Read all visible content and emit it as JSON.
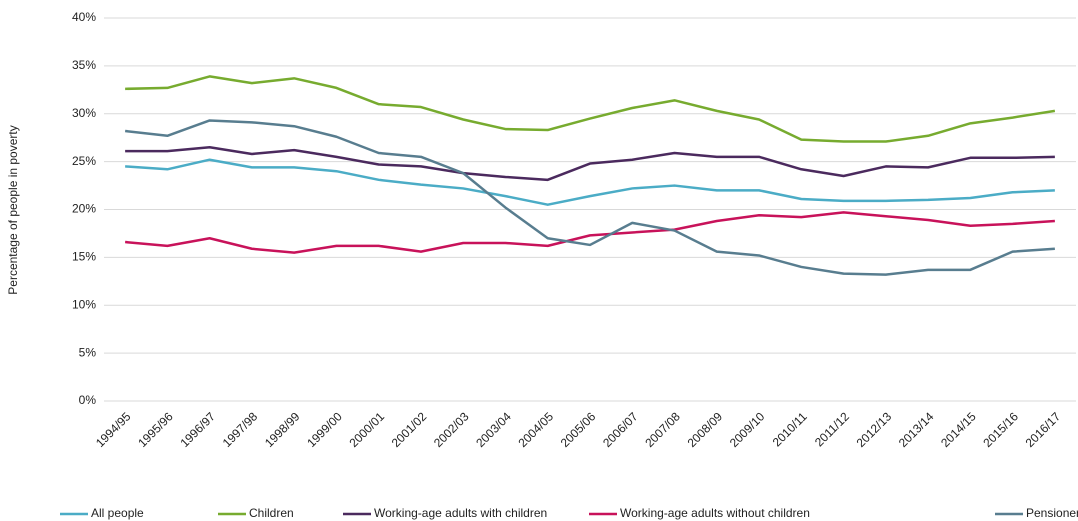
{
  "chart_data": {
    "type": "line",
    "y_label": "Percentage of people in poverty",
    "categories": [
      "1994/95",
      "1995/96",
      "1996/97",
      "1997/98",
      "1998/99",
      "1999/00",
      "2000/01",
      "2001/02",
      "2002/03",
      "2003/04",
      "2004/05",
      "2005/06",
      "2006/07",
      "2007/08",
      "2008/09",
      "2009/10",
      "2010/11",
      "2011/12",
      "2012/13",
      "2013/14",
      "2014/15",
      "2015/16",
      "2016/17"
    ],
    "series": [
      {
        "name": "All people",
        "color": "#4bacc6",
        "values": [
          24.5,
          24.2,
          25.2,
          24.4,
          24.4,
          24.0,
          23.1,
          22.6,
          22.2,
          21.4,
          20.5,
          21.4,
          22.2,
          22.5,
          22.0,
          22.0,
          21.1,
          20.9,
          20.9,
          21.0,
          21.2,
          21.8,
          22.0
        ]
      },
      {
        "name": "Children",
        "color": "#77ab2f",
        "values": [
          32.6,
          32.7,
          33.9,
          33.2,
          33.7,
          32.7,
          31.0,
          30.7,
          29.4,
          28.4,
          28.3,
          29.5,
          30.6,
          31.4,
          30.3,
          29.4,
          27.3,
          27.1,
          27.1,
          27.7,
          29.0,
          29.6,
          30.3
        ]
      },
      {
        "name": "Working-age adults with children",
        "color": "#4b2a5e",
        "values": [
          26.1,
          26.1,
          26.5,
          25.8,
          26.2,
          25.5,
          24.7,
          24.5,
          23.8,
          23.4,
          23.1,
          24.8,
          25.2,
          25.9,
          25.5,
          25.5,
          24.2,
          23.5,
          24.5,
          24.4,
          25.4,
          25.4,
          25.5
        ]
      },
      {
        "name": "Working-age adults without children",
        "color": "#c8125a",
        "values": [
          16.6,
          16.2,
          17.0,
          15.9,
          15.5,
          16.2,
          16.2,
          15.6,
          16.5,
          16.5,
          16.2,
          17.3,
          17.6,
          17.9,
          18.8,
          19.4,
          19.2,
          19.7,
          19.3,
          18.9,
          18.3,
          18.5,
          18.8
        ]
      },
      {
        "name": "Pensioners",
        "color": "#587d8f",
        "values": [
          28.2,
          27.7,
          29.3,
          29.1,
          28.7,
          27.6,
          25.9,
          25.5,
          23.8,
          20.2,
          17.0,
          16.3,
          18.6,
          17.8,
          15.6,
          15.2,
          14.0,
          13.3,
          13.2,
          13.7,
          13.7,
          15.6,
          15.9
        ]
      }
    ],
    "ylim": [
      0,
      40
    ],
    "yticks": [
      {
        "value": 0,
        "label": "0%"
      },
      {
        "value": 5,
        "label": "5%"
      },
      {
        "value": 10,
        "label": "10%"
      },
      {
        "value": 15,
        "label": "15%"
      },
      {
        "value": 20,
        "label": "20%"
      },
      {
        "value": 25,
        "label": "25%"
      },
      {
        "value": 30,
        "label": "30%"
      },
      {
        "value": 35,
        "label": "35%"
      },
      {
        "value": 40,
        "label": "40%"
      }
    ],
    "grid": true,
    "legend": "bottom"
  }
}
